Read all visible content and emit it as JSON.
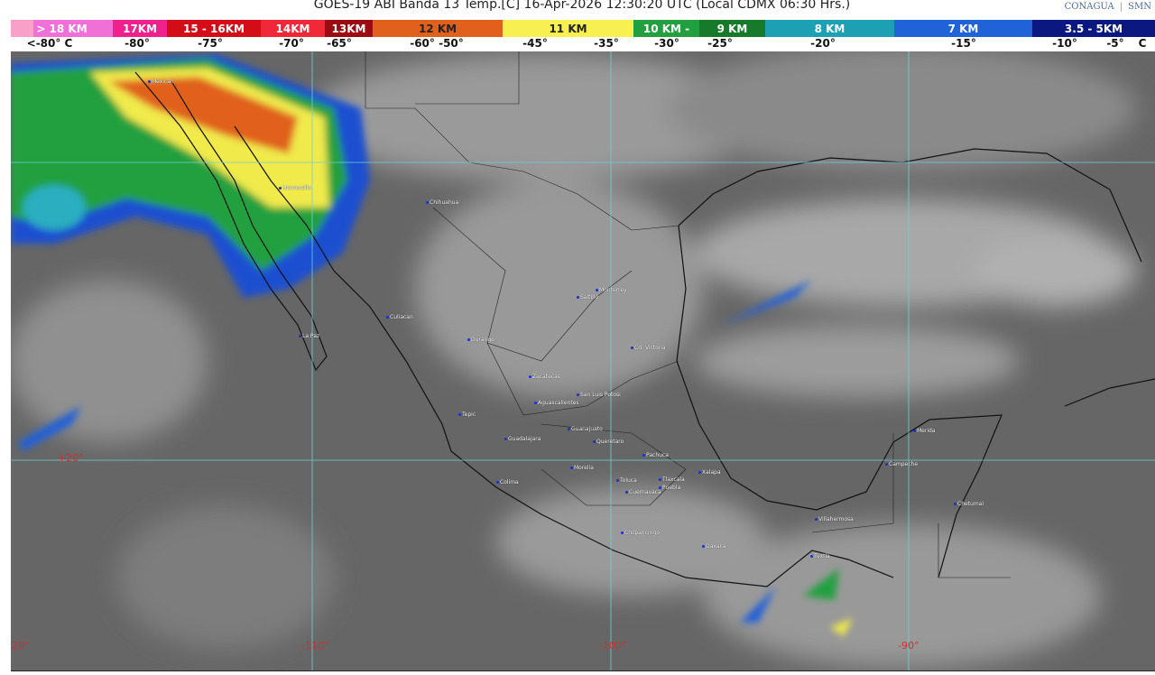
{
  "header": {
    "title": "GOES-19 ABI Banda 13 Temp.[C] 16-Apr-2026 12:30:20 UTC (Local CDMX  06:30 Hrs.)",
    "logo_conagua": "CONAGUA",
    "logo_smn": "SMN"
  },
  "legend": {
    "bands": [
      {
        "label": "> 18 KM",
        "color": "#f070d8"
      },
      {
        "label": "17KM",
        "color": "#f0208c"
      },
      {
        "label": "15 - 16KM",
        "color": "#d40c18"
      },
      {
        "label": "14KM",
        "color": "#f02838"
      },
      {
        "label": "13KM",
        "color": "#9c0a12"
      },
      {
        "label": "12 KM",
        "color": "#e0601c"
      },
      {
        "label": "11 KM",
        "color": "#f8f050"
      },
      {
        "label": "10 KM -",
        "color": "#22a040"
      },
      {
        "label": "9 KM",
        "color": "#177a2a"
      },
      {
        "label": "8 KM",
        "color": "#1ea0b4"
      },
      {
        "label": "7 KM",
        "color": "#2062d8"
      },
      {
        "label": "3.5 - 5KM",
        "color": "#0a1880"
      }
    ],
    "temps": [
      "<-80° C",
      "-80°",
      "-75°",
      "-70°",
      "-65°",
      "-60° -50°",
      "-45°",
      "-35°",
      "-30°",
      "-25°",
      "-20°",
      "-15°",
      "-10°",
      "-5°",
      "C"
    ]
  },
  "grid_labels": {
    "lat20": "+20°",
    "lon120": "-120°",
    "lon110": "-110°",
    "lon100": "-100°",
    "lon90": "-90°"
  },
  "cities": [
    "Mexicali",
    "Hermosillo",
    "Chihuahua",
    "Culiacan",
    "La Paz",
    "Durango",
    "Saltillo",
    "Monterrey",
    "Cd. Victoria",
    "Zacatecas",
    "San Luis Potosi",
    "Aguascalientes",
    "Tepic",
    "Guanajuato",
    "Guadalajara",
    "Queretaro",
    "Pachuca",
    "Morelia",
    "Colima",
    "Toluca",
    "Tlaxcala",
    "Xalapa",
    "Cuernavaca",
    "Puebla",
    "Chilpancingo",
    "Oaxaca",
    "Villahermosa",
    "Tuxtla",
    "Merida",
    "Campeche",
    "Chetumal"
  ]
}
